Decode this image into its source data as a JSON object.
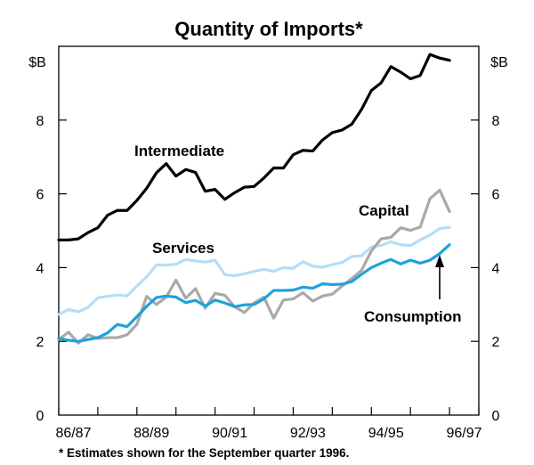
{
  "chart_data": {
    "type": "line",
    "title": "Quantity of Imports*",
    "ylabel": "$B",
    "ylabel_right": "$B",
    "ylim": [
      0,
      10
    ],
    "yticks": [
      0,
      2,
      4,
      6,
      8
    ],
    "xlim": [
      0,
      43
    ],
    "x_tick_labels": [
      {
        "label": "86/87",
        "x": 1.5
      },
      {
        "label": "88/89",
        "x": 9.5
      },
      {
        "label": "90/91",
        "x": 17.5
      },
      {
        "label": "92/93",
        "x": 25.5
      },
      {
        "label": "94/95",
        "x": 33.5
      },
      {
        "label": "96/97",
        "x": 41.5
      }
    ],
    "x_tick_positions": [
      0,
      4,
      8,
      12,
      16,
      20,
      24,
      28,
      32,
      36,
      40,
      43
    ],
    "series": [
      {
        "name": "Intermediate",
        "color": "#000000",
        "values": [
          4.75,
          4.75,
          4.78,
          4.95,
          5.08,
          5.42,
          5.55,
          5.55,
          5.82,
          6.15,
          6.57,
          6.82,
          6.48,
          6.66,
          6.58,
          6.07,
          6.12,
          5.85,
          6.03,
          6.18,
          6.2,
          6.43,
          6.7,
          6.7,
          7.06,
          7.18,
          7.16,
          7.46,
          7.66,
          7.73,
          7.89,
          8.29,
          8.8,
          9.01,
          9.45,
          9.3,
          9.12,
          9.21,
          9.78,
          9.68,
          9.62
        ]
      },
      {
        "name": "Services",
        "color": "#b5ddf6",
        "values": [
          2.73,
          2.86,
          2.8,
          2.92,
          3.18,
          3.22,
          3.26,
          3.23,
          3.5,
          3.75,
          4.07,
          4.07,
          4.09,
          4.22,
          4.18,
          4.15,
          4.2,
          3.81,
          3.78,
          3.83,
          3.9,
          3.95,
          3.9,
          4.0,
          3.98,
          4.16,
          4.04,
          4.01,
          4.08,
          4.14,
          4.3,
          4.32,
          4.56,
          4.6,
          4.7,
          4.62,
          4.6,
          4.75,
          4.88,
          5.06,
          5.09
        ]
      },
      {
        "name": "Capital",
        "color": "#a9a9a9",
        "values": [
          2.05,
          2.25,
          1.95,
          2.18,
          2.08,
          2.1,
          2.1,
          2.18,
          2.46,
          3.22,
          3.0,
          3.2,
          3.66,
          3.17,
          3.43,
          2.9,
          3.3,
          3.25,
          2.94,
          2.78,
          3.04,
          3.2,
          2.63,
          3.12,
          3.15,
          3.32,
          3.09,
          3.23,
          3.28,
          3.5,
          3.7,
          3.93,
          4.45,
          4.78,
          4.82,
          5.08,
          5.01,
          5.1,
          5.87,
          6.1,
          5.52
        ]
      },
      {
        "name": "Consumption",
        "color": "#1ea2dc",
        "values": [
          2.08,
          2.03,
          2.0,
          2.05,
          2.1,
          2.23,
          2.46,
          2.4,
          2.67,
          2.95,
          3.19,
          3.23,
          3.2,
          3.05,
          3.11,
          2.96,
          3.12,
          3.04,
          2.94,
          2.99,
          3.0,
          3.15,
          3.38,
          3.38,
          3.39,
          3.47,
          3.44,
          3.56,
          3.54,
          3.55,
          3.62,
          3.82,
          4.0,
          4.12,
          4.22,
          4.1,
          4.2,
          4.12,
          4.2,
          4.38,
          4.62
        ]
      }
    ],
    "annotations": [
      {
        "text": "Intermediate",
        "series": "Intermediate"
      },
      {
        "text": "Services",
        "series": "Services"
      },
      {
        "text": "Capital",
        "series": "Capital"
      },
      {
        "text": "Consumption",
        "series": "Consumption"
      }
    ],
    "footnote": "*  Estimates shown for the September quarter 1996."
  }
}
